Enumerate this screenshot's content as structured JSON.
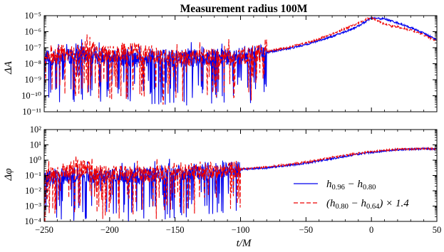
{
  "chart_data": {
    "type": "line",
    "title": "Measurement radius 100M",
    "xlabel": "t/M",
    "xlim": [
      -250,
      50
    ],
    "x_ticks": [
      -250,
      -200,
      -150,
      -100,
      -50,
      0,
      50
    ],
    "x_tick_labels": [
      "−250",
      "−200",
      "−150",
      "−100",
      "−50",
      "0",
      "50"
    ],
    "log_scale_y": true,
    "grid": false,
    "panels": [
      {
        "ylabel": "ΔA",
        "ylim_exp": [
          -11,
          -5
        ],
        "y_tick_exps": [
          -11,
          -10,
          -9,
          -8,
          -7,
          -6,
          -5
        ],
        "y_tick_labels": [
          "10⁻¹¹",
          "10⁻¹⁰",
          "10⁻⁹",
          "10⁻⁸",
          "10⁻⁷",
          "10⁻⁶",
          "10⁻⁵"
        ],
        "series": [
          {
            "color": "#0000ee",
            "dash": "solid",
            "x": [
              -250,
              -240,
              -230,
              -220,
              -210,
              -200,
              -190,
              -180,
              -170,
              -160,
              -150,
              -140,
              -130,
              -120,
              -110,
              -100,
              -90,
              -80,
              -70,
              -60,
              -50,
              -40,
              -30,
              -20,
              -10,
              0,
              10,
              20,
              30,
              40,
              50
            ],
            "log10_y": [
              -7.7,
              -7.6,
              -7.5,
              -7.4,
              -7.5,
              -7.6,
              -7.6,
              -7.7,
              -7.6,
              -7.6,
              -7.7,
              -7.7,
              -7.6,
              -7.6,
              -7.6,
              -7.5,
              -7.45,
              -7.3,
              -7.15,
              -7.0,
              -6.8,
              -6.55,
              -6.3,
              -6.0,
              -5.65,
              -5.15,
              -5.2,
              -5.45,
              -5.75,
              -6.1,
              -6.5
            ],
            "noise_until": -80
          },
          {
            "color": "#ee0000",
            "dash": "dashed",
            "x": [
              -250,
              -240,
              -230,
              -220,
              -210,
              -200,
              -190,
              -180,
              -170,
              -160,
              -150,
              -140,
              -130,
              -120,
              -110,
              -100,
              -90,
              -80,
              -70,
              -60,
              -50,
              -40,
              -30,
              -20,
              -10,
              0,
              10,
              20,
              30,
              40,
              50
            ],
            "log10_y": [
              -7.6,
              -7.4,
              -7.3,
              -7.1,
              -7.3,
              -7.4,
              -7.3,
              -7.2,
              -7.4,
              -7.6,
              -7.7,
              -7.6,
              -7.6,
              -7.6,
              -7.5,
              -7.5,
              -7.4,
              -7.25,
              -7.1,
              -6.9,
              -6.7,
              -6.45,
              -6.15,
              -5.8,
              -5.45,
              -5.1,
              -5.55,
              -5.7,
              -5.9,
              -6.2,
              -6.6
            ],
            "noise_until": -80
          }
        ]
      },
      {
        "ylabel": "Δφ",
        "ylim_exp": [
          -4,
          2
        ],
        "y_tick_exps": [
          -4,
          -3,
          -2,
          -1,
          0,
          1,
          2
        ],
        "y_tick_labels": [
          "10⁻⁴",
          "10⁻³",
          "10⁻²",
          "10⁻¹",
          "10⁰",
          "10¹",
          "10²"
        ],
        "series": [
          {
            "name": "h0.96 − h0.80",
            "color": "#0000ee",
            "dash": "solid",
            "x": [
              -250,
              -240,
              -230,
              -220,
              -210,
              -200,
              -190,
              -180,
              -170,
              -160,
              -150,
              -140,
              -130,
              -120,
              -110,
              -100,
              -90,
              -80,
              -70,
              -60,
              -50,
              -40,
              -30,
              -20,
              -10,
              0,
              10,
              20,
              30,
              40,
              50
            ],
            "log10_y": [
              -1.3,
              -1.1,
              -1.0,
              -1.0,
              -1.1,
              -1.1,
              -1.1,
              -1.1,
              -1.0,
              -0.9,
              -0.9,
              -0.8,
              -0.75,
              -0.7,
              -0.65,
              -0.6,
              -0.55,
              -0.5,
              -0.4,
              -0.3,
              -0.2,
              -0.05,
              0.1,
              0.25,
              0.4,
              0.5,
              0.6,
              0.68,
              0.72,
              0.74,
              0.72
            ],
            "noise_until": -100
          },
          {
            "name": "(h0.80 − h0.64) × 1.4",
            "color": "#ee0000",
            "dash": "dashed",
            "x": [
              -250,
              -240,
              -230,
              -220,
              -210,
              -200,
              -190,
              -180,
              -170,
              -160,
              -150,
              -140,
              -130,
              -120,
              -110,
              -100,
              -90,
              -80,
              -70,
              -60,
              -50,
              -40,
              -30,
              -20,
              -10,
              0,
              10,
              20,
              30,
              40,
              50
            ],
            "log10_y": [
              -1.2,
              -0.8,
              -0.6,
              -0.5,
              -0.8,
              -0.9,
              -0.8,
              -0.9,
              -1.0,
              -0.9,
              -0.8,
              -0.75,
              -0.7,
              -0.68,
              -0.62,
              -0.58,
              -0.52,
              -0.45,
              -0.35,
              -0.25,
              -0.12,
              0.02,
              0.18,
              0.32,
              0.45,
              0.55,
              0.64,
              0.7,
              0.73,
              0.75,
              0.72
            ],
            "noise_until": -100
          }
        ],
        "legend": {
          "placement": "bottom-right",
          "entries": [
            {
              "label_parts": [
                "h",
                "0.96",
                " − h",
                "0.80"
              ],
              "color": "#0000ee",
              "dash": "solid"
            },
            {
              "label_parts": [
                "(h",
                "0.80",
                " − h",
                "0.64",
                ") × 1.4"
              ],
              "color": "#ee0000",
              "dash": "dashed"
            }
          ]
        }
      }
    ]
  }
}
